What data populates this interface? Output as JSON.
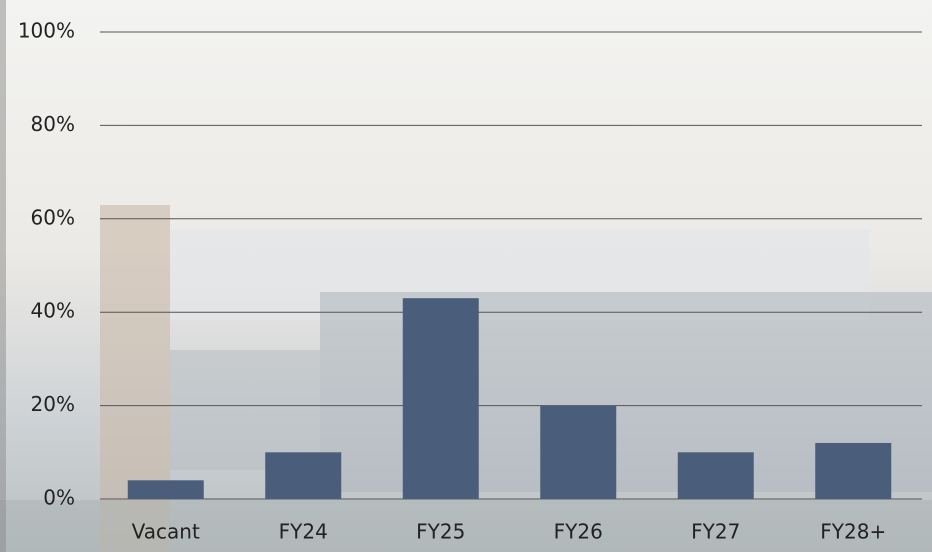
{
  "chart_data": {
    "type": "bar",
    "categories": [
      "Vacant",
      "FY24",
      "FY25",
      "FY26",
      "FY27",
      "FY28+"
    ],
    "values": [
      4,
      10,
      43,
      20,
      10,
      12
    ],
    "color": "#4a5d7b",
    "ylim": [
      0,
      100
    ],
    "yticks": [
      {
        "value": 0,
        "label": "0%"
      },
      {
        "value": 20,
        "label": "20%"
      },
      {
        "value": 40,
        "label": "40%"
      },
      {
        "value": 60,
        "label": "60%"
      },
      {
        "value": 80,
        "label": "80%"
      },
      {
        "value": 100,
        "label": "100%"
      }
    ],
    "grid": true
  }
}
